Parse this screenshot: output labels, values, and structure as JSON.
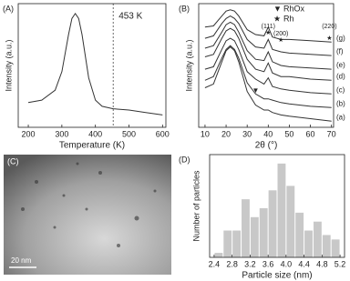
{
  "chart_data": [
    {
      "type": "line",
      "panel": "(A)",
      "xlabel": "Temperature (K)",
      "ylabel": "Intensity (a.u.)",
      "x": [
        200,
        240,
        280,
        300,
        320,
        330,
        340,
        350,
        360,
        380,
        400,
        420,
        453,
        500,
        550,
        600
      ],
      "series": [
        {
          "color": "#333333",
          "values": [
            20,
            22,
            30,
            45,
            75,
            88,
            92,
            88,
            75,
            40,
            22,
            17,
            15,
            14,
            12,
            10
          ]
        }
      ],
      "xlim": [
        170,
        610
      ],
      "ylim": [
        0,
        100
      ],
      "xticks": [
        200,
        300,
        400,
        500,
        600
      ],
      "vline": {
        "x": 453,
        "label": "453 K"
      }
    },
    {
      "type": "line",
      "panel": "(B)",
      "xlabel": "2θ (°)",
      "ylabel": "Intensity (a.u.)",
      "x": [
        10,
        14,
        18,
        20,
        22,
        24,
        26,
        30,
        34,
        38,
        40,
        42,
        46,
        50,
        60,
        70
      ],
      "series": [
        {
          "name": "(a)",
          "color": "#333333",
          "values": [
            32,
            35,
            53,
            62,
            65,
            62,
            53,
            29,
            18,
            14,
            14,
            12,
            10,
            9,
            7,
            5
          ]
        },
        {
          "name": "(b)",
          "color": "#333333",
          "values": [
            38,
            41,
            56,
            63,
            66,
            63,
            56,
            36,
            27,
            23,
            23,
            22,
            20,
            19,
            17,
            16
          ]
        },
        {
          "name": "(c)",
          "color": "#333333",
          "values": [
            47,
            49,
            63,
            70,
            72,
            70,
            63,
            45,
            39,
            35,
            40,
            33,
            31,
            30,
            28,
            27
          ]
        },
        {
          "name": "(d)",
          "color": "#333333",
          "values": [
            57,
            59,
            72,
            78,
            80,
            78,
            72,
            55,
            47,
            45,
            52,
            44,
            41,
            41,
            39,
            38
          ]
        },
        {
          "name": "(e)",
          "color": "#333333",
          "values": [
            64,
            66,
            77,
            83,
            85,
            83,
            77,
            62,
            55,
            54,
            61,
            53,
            50,
            49,
            48,
            47
          ]
        },
        {
          "name": "(f)",
          "color": "#333333",
          "values": [
            72,
            74,
            84,
            88,
            90,
            88,
            84,
            71,
            65,
            64,
            71,
            63,
            61,
            60,
            59,
            58
          ]
        },
        {
          "name": "(g)",
          "color": "#333333",
          "values": [
            81,
            82,
            90,
            94,
            95,
            94,
            90,
            79,
            75,
            74,
            81,
            73,
            71,
            71,
            70,
            69
          ]
        }
      ],
      "xlim": [
        7,
        71
      ],
      "ylim": [
        0,
        100
      ],
      "xticks": [
        10,
        20,
        30,
        40,
        50,
        60,
        70
      ],
      "legend": [
        {
          "symbol": "▼",
          "label": "RhOx"
        },
        {
          "symbol": "★",
          "label": "Rh"
        }
      ],
      "peaks": [
        {
          "x": 40,
          "label": "(111)"
        },
        {
          "x": 46,
          "label": "(200)"
        },
        {
          "x": 69,
          "label": "(220)"
        }
      ],
      "rhox_peak": {
        "x": 34
      }
    },
    {
      "type": "histogram",
      "panel": "(D)",
      "xlabel": "Particle size (nm)",
      "ylabel": "Number of particles",
      "bins": [
        2.4,
        2.6,
        2.8,
        3.0,
        3.2,
        3.4,
        3.6,
        3.8,
        4.0,
        4.2,
        4.4,
        4.6,
        4.8,
        5.0,
        5.2
      ],
      "values": [
        1,
        6,
        6,
        13,
        9,
        11,
        15,
        21,
        16,
        10,
        6,
        8,
        5,
        4
      ],
      "color": "#c8c8c8",
      "xlim": [
        2.3,
        5.3
      ],
      "ylim": [
        0,
        23
      ],
      "xticks": [
        2.4,
        2.8,
        3.2,
        3.6,
        {
          "value": 4,
          "label": "4.0"
        },
        4.4,
        4.8,
        5.2
      ]
    }
  ],
  "image_panel": {
    "label": "(C)",
    "scale_bar": "20 nm"
  }
}
